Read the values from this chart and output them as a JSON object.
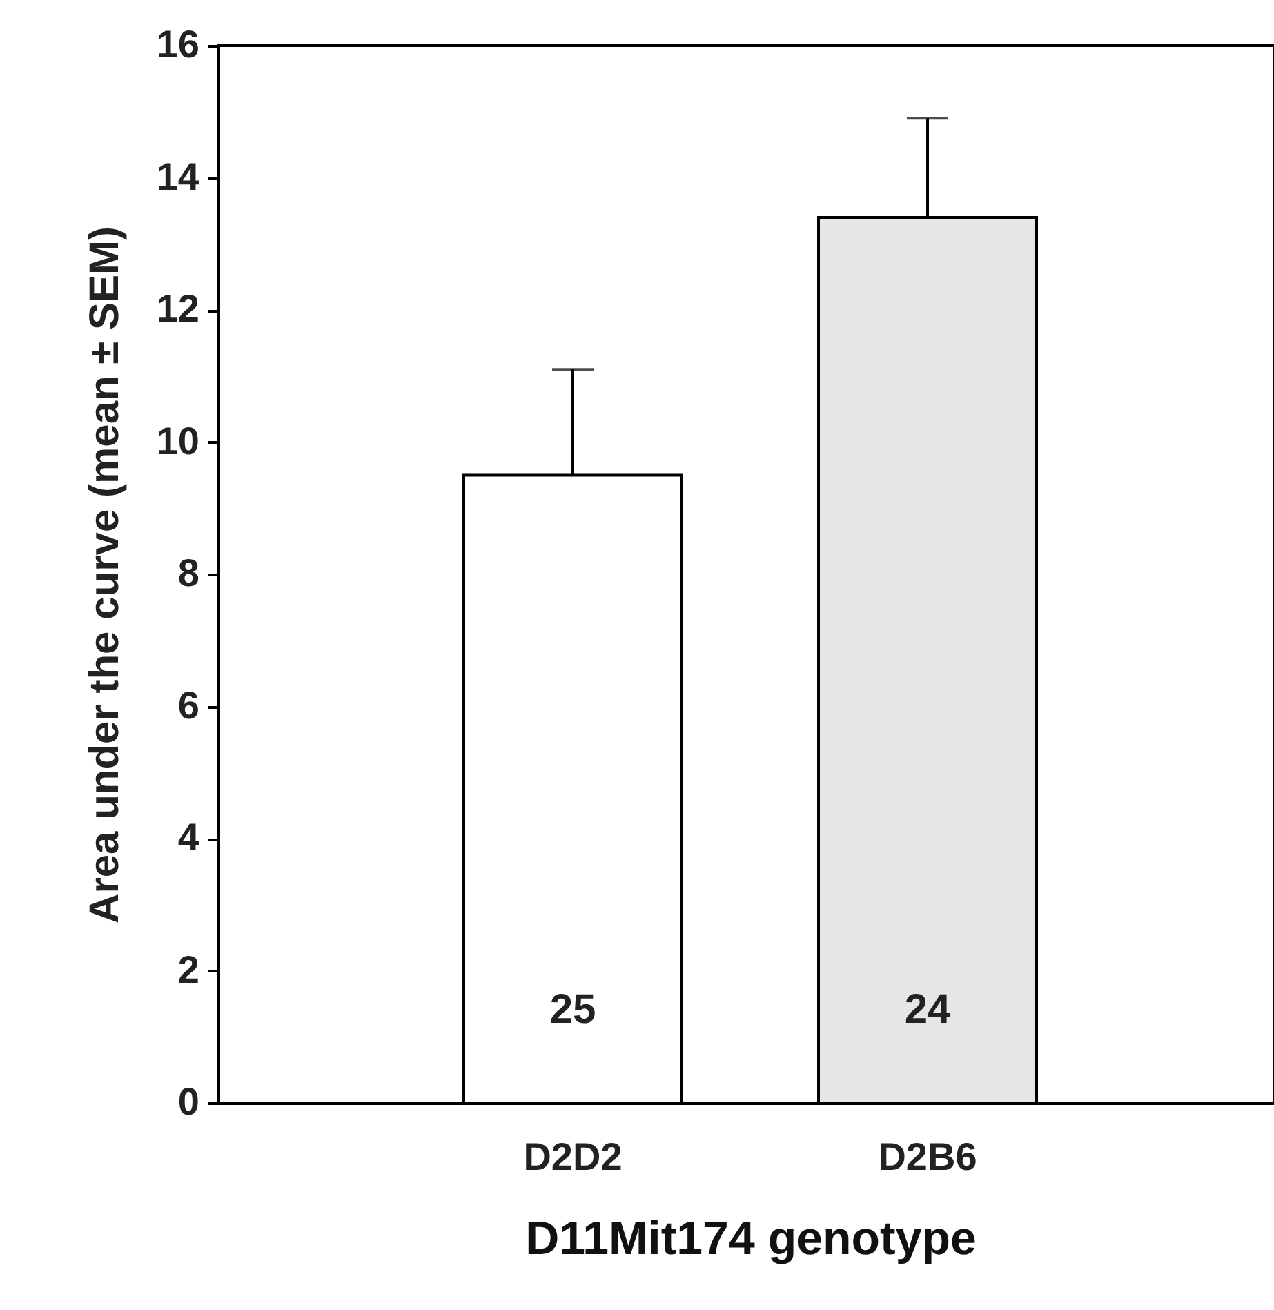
{
  "chart_data": {
    "type": "bar",
    "categories": [
      "D2D2",
      "D2B6"
    ],
    "values": [
      9.5,
      13.4
    ],
    "colors": [
      "#ffffff",
      "#e6e6e6"
    ],
    "errors": [
      [
        9.5,
        11.1
      ],
      [
        13.4,
        14.9
      ]
    ],
    "ylim": [
      0,
      16
    ],
    "yticks": [
      0,
      2,
      4,
      6,
      8,
      10,
      12,
      14,
      16
    ],
    "xlabel": "D11Mit174 genotype",
    "ylabel": "Area under the curve (mean ± SEM)",
    "annotations": [
      "25",
      "24"
    ],
    "grid": false
  }
}
